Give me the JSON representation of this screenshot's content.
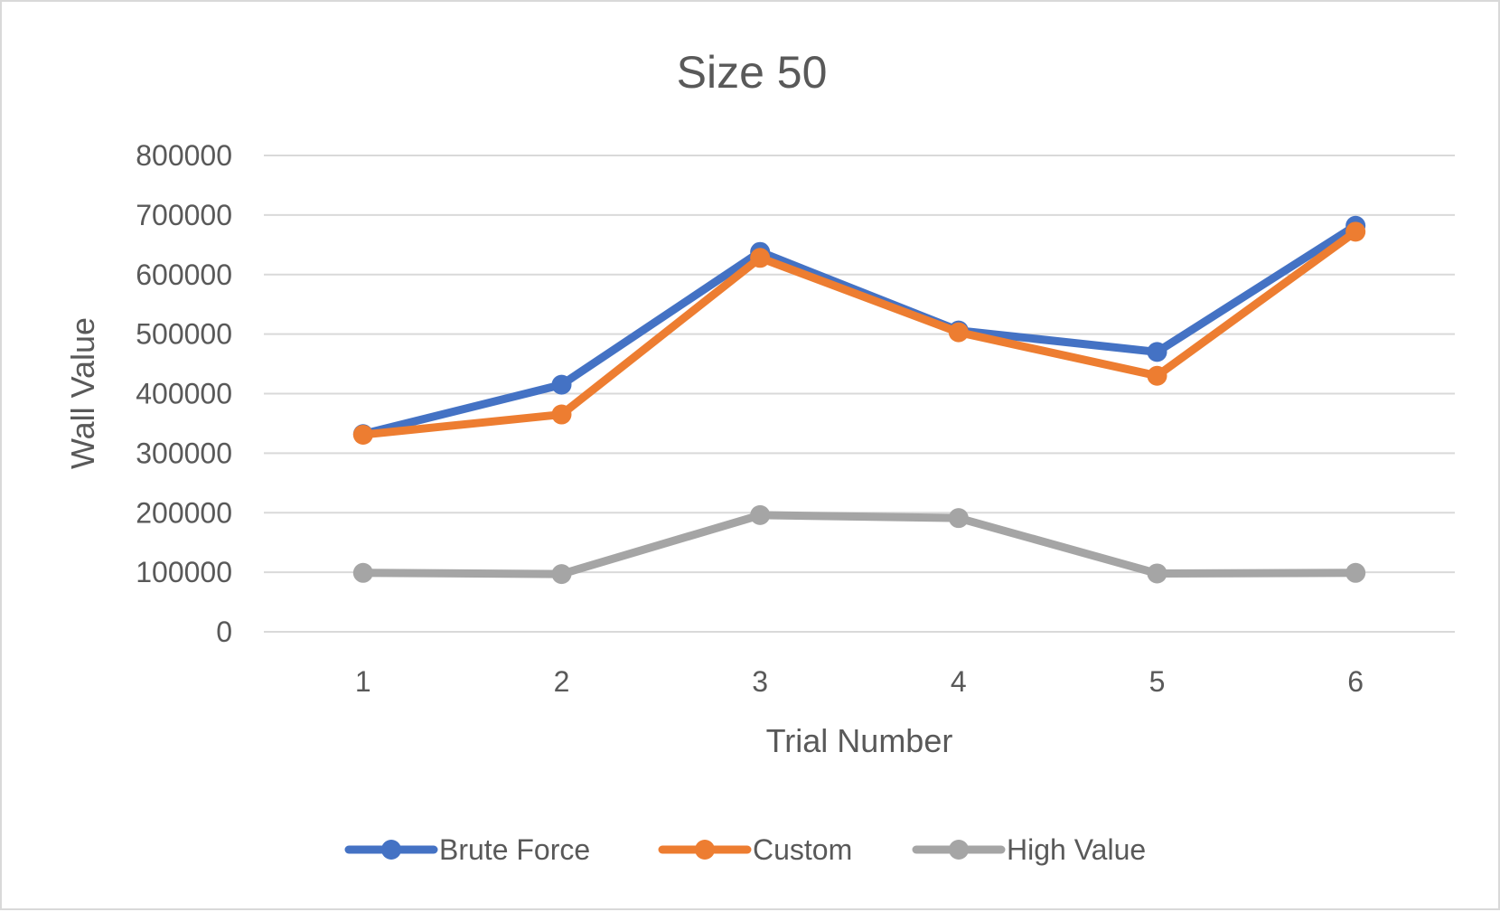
{
  "chart_data": {
    "type": "line",
    "title": "Size 50",
    "xlabel": "Trial Number",
    "ylabel": "Wall Value",
    "categories": [
      "1",
      "2",
      "3",
      "4",
      "5",
      "6"
    ],
    "ylim": [
      0,
      800000
    ],
    "yticks": [
      "0",
      "100000",
      "200000",
      "300000",
      "400000",
      "500000",
      "600000",
      "700000",
      "800000"
    ],
    "grid": true,
    "legend_position": "bottom",
    "series": [
      {
        "name": "Brute Force",
        "color": "#4472c4",
        "values": [
          332000,
          415000,
          638000,
          506000,
          470000,
          682000
        ]
      },
      {
        "name": "Custom",
        "color": "#ed7d31",
        "values": [
          331000,
          365000,
          628000,
          503000,
          430000,
          672000
        ]
      },
      {
        "name": "High Value",
        "color": "#a5a5a5",
        "values": [
          99000,
          97000,
          196000,
          191000,
          98000,
          99000
        ]
      }
    ]
  }
}
